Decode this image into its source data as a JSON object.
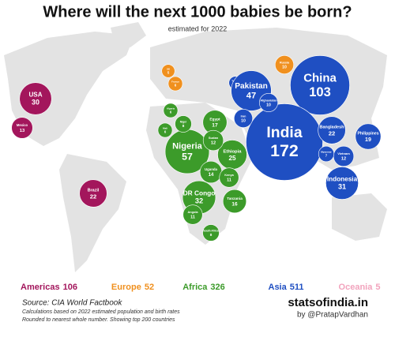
{
  "header": {
    "title": "Where will the next 1000 babies be born?",
    "subtitle": "estimated for 2022"
  },
  "regions": [
    {
      "name": "Americas",
      "total": 106,
      "color": "#a3165c"
    },
    {
      "name": "Europe",
      "total": 52,
      "color": "#f0901e"
    },
    {
      "name": "Africa",
      "total": 326,
      "color": "#3c9b2a"
    },
    {
      "name": "Asia",
      "total": 511,
      "color": "#1f4fc2"
    },
    {
      "name": "Oceania",
      "total": 5,
      "color": "#f2a3bd"
    }
  ],
  "bubbles": [
    {
      "label": "USA",
      "value": 30,
      "region": 0
    },
    {
      "label": "Mexico",
      "value": 13,
      "region": 0
    },
    {
      "label": "Brazil",
      "value": 22,
      "region": 0
    },
    {
      "label": "UK",
      "value": 5,
      "region": 1
    },
    {
      "label": "France",
      "value": 6,
      "region": 1
    },
    {
      "label": "Russia",
      "value": 10,
      "region": 1
    },
    {
      "label": "Turkey",
      "value": 5,
      "region": 3
    },
    {
      "label": "Pakistan",
      "value": 47,
      "region": 3
    },
    {
      "label": "China",
      "value": 103,
      "region": 3
    },
    {
      "label": "India",
      "value": 172,
      "region": 3
    },
    {
      "label": "Iran",
      "value": 10,
      "region": 3
    },
    {
      "label": "Afghanistan",
      "value": 10,
      "region": 3
    },
    {
      "label": "Bangladesh",
      "value": 22,
      "region": 3
    },
    {
      "label": "Philippines",
      "value": 19,
      "region": 3
    },
    {
      "label": "Indonesia",
      "value": 31,
      "region": 3
    },
    {
      "label": "Vietnam",
      "value": 12,
      "region": 3
    },
    {
      "label": "Myanmar",
      "value": 7,
      "region": 3
    },
    {
      "label": "Nigeria",
      "value": 57,
      "region": 2
    },
    {
      "label": "Egypt",
      "value": 17,
      "region": 2
    },
    {
      "label": "Ethiopia",
      "value": 25,
      "region": 2
    },
    {
      "label": "Sudan",
      "value": 12,
      "region": 2
    },
    {
      "label": "DR Congo",
      "value": 32,
      "region": 2
    },
    {
      "label": "Uganda",
      "value": 14,
      "region": 2
    },
    {
      "label": "Tanzania",
      "value": 16,
      "region": 2
    },
    {
      "label": "Kenya",
      "value": 11,
      "region": 2
    },
    {
      "label": "Angola",
      "value": 11,
      "region": 2
    },
    {
      "label": "South Africa",
      "value": 8,
      "region": 2
    },
    {
      "label": "Niger",
      "value": 8,
      "region": 2
    },
    {
      "label": "Mali",
      "value": 6,
      "region": 2
    },
    {
      "label": "Algeria",
      "value": 6,
      "region": 2
    }
  ],
  "footer": {
    "source": "Source: CIA World Factbook",
    "note1": "Calculations based on 2022 estimated population and birth rates",
    "note2": "Rounded to nearest whole number. Showing top 200 countries",
    "brand": "statsofindia.in",
    "author": "by @PratapVardhan"
  }
}
